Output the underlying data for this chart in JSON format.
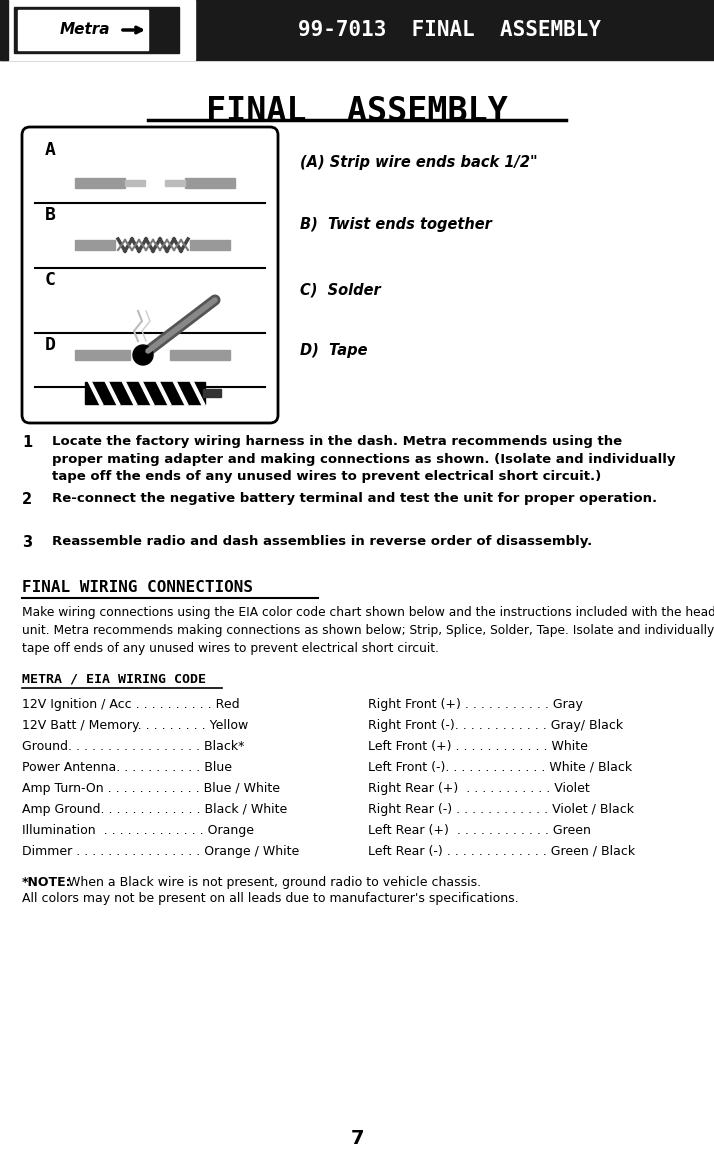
{
  "header_bg": "#1a1a1a",
  "header_title": "99-7013  FINAL  ASSEMBLY",
  "page_title": "FINAL  ASSEMBLY",
  "bg_color": "#ffffff",
  "steps": [
    {
      "num": "1",
      "text": "Locate the factory wiring harness in the dash. Metra recommends using the\nproper mating adapter and making connections as shown. (Isolate and individually\ntape off the ends of any unused wires to prevent electrical short circuit.)"
    },
    {
      "num": "2",
      "text": "Re-connect the negative battery terminal and test the unit for proper operation."
    },
    {
      "num": "3",
      "text": "Reassemble radio and dash assemblies in reverse order of disassembly."
    }
  ],
  "section2_title": "FINAL WIRING CONNECTIONS",
  "section2_body": "Make wiring connections using the EIA color code chart shown below and the instructions included with the head\nunit. Metra recommends making connections as shown below; Strip, Splice, Solder, Tape. Isolate and individually\ntape off ends of any unused wires to prevent electrical short circuit.",
  "section3_title": "METRA / EIA WIRING CODE",
  "wiring_left": [
    [
      "12V Ignition / Acc . . . . . . . . . .",
      "Red"
    ],
    [
      "12V Batt / Memory. . . . . . . . .",
      "Yellow"
    ],
    [
      "Ground. . . . . . . . . . . . . . . . .",
      "Black*"
    ],
    [
      "Power Antenna. . . . . . . . . . .",
      "Blue"
    ],
    [
      "Amp Turn-On . . . . . . . . . . . .",
      "Blue / White"
    ],
    [
      "Amp Ground. . . . . . . . . . . . .",
      "Black / White"
    ],
    [
      "Illumination  . . . . . . . . . . . . .",
      "Orange"
    ],
    [
      "Dimmer . . . . . . . . . . . . . . . .",
      "Orange / White"
    ]
  ],
  "wiring_right": [
    [
      "Right Front (+) . . . . . . . . . . .",
      "Gray"
    ],
    [
      "Right Front (-). . . . . . . . . . . .",
      "Gray/ Black"
    ],
    [
      "Left Front (+) . . . . . . . . . . . .",
      "White"
    ],
    [
      "Left Front (-). . . . . . . . . . . . .",
      "White / Black"
    ],
    [
      "Right Rear (+)  . . . . . . . . . . .",
      "Violet"
    ],
    [
      "Right Rear (-) . . . . . . . . . . . .",
      "Violet / Black"
    ],
    [
      "Left Rear (+)  . . . . . . . . . . . .",
      "Green"
    ],
    [
      "Left Rear (-) . . . . . . . . . . . . .",
      "Green / Black"
    ]
  ],
  "note_bold": "*NOTE:",
  "note_text1": " When a Black wire is not present, ground radio to vehicle chassis.",
  "note_text2": "All colors may not be present on all leads due to manufacturer's specifications.",
  "page_number": "7",
  "diagram_labels": [
    "A",
    "B",
    "C",
    "D"
  ],
  "diagram_instructions": [
    "(A) Strip wire ends back 1/2\"",
    "B)  Twist ends together",
    "C)  Solder",
    "D)  Tape"
  ]
}
